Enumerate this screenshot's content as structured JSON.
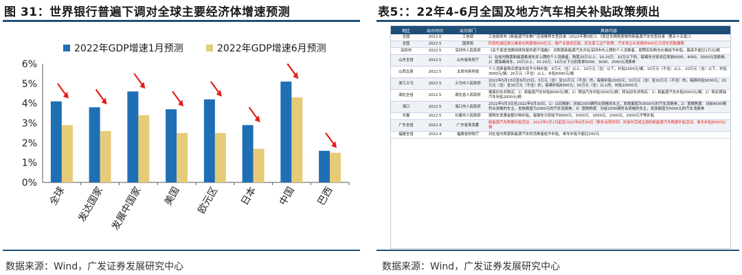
{
  "left": {
    "title": "图 31：世界银行普遍下调对全球主要经济体增速预测",
    "source": "数据来源：Wind，广发证券发展研究中心"
  },
  "chart_data": {
    "type": "bar",
    "categories": [
      "全球",
      "发达国家",
      "发展中国家",
      "美国",
      "欧元区",
      "日本",
      "中国",
      "巴西"
    ],
    "series": [
      {
        "name": "2022年GDP增速1月预测",
        "color": "#1f6fb5",
        "values": [
          4.1,
          3.8,
          4.6,
          3.7,
          4.2,
          2.9,
          5.1,
          1.6
        ]
      },
      {
        "name": "2022年GDP增速6月预测",
        "color": "#e6cc78",
        "values": [
          2.9,
          2.6,
          3.4,
          2.5,
          2.5,
          1.7,
          4.3,
          1.5
        ]
      }
    ],
    "ylim": [
      0,
      6
    ],
    "yticks": [
      "0%",
      "1%",
      "2%",
      "3%",
      "4%",
      "5%",
      "6%"
    ],
    "annotation_color": "#e0201b",
    "grid": false,
    "legend": "top"
  },
  "right": {
    "title": "表5：：22年4-6月全国及地方汽车相关补贴政策频出",
    "source": "数据来源：Wind，广发证券发展研究中心",
    "headers": [
      "地区",
      "出台时间",
      "出台部门",
      "具体内容"
    ],
    "rows": [
      {
        "region": "全国",
        "date": "2022.6",
        "dept": "工信部",
        "content": "工信部发布《新能源汽车推广应用推荐车型目录（2022年第5批）》、《免征车辆购置税的新能源汽车车型目录（第五十五批）》"
      },
      {
        "region": "全国",
        "date": "2022.5",
        "dept": "国务院",
        "content": "阶段性减征部分乘用车购置税600亿元，稳产业链供应链、优化复工达产政策、汽车类企业发放的900亿元货车贷款展期",
        "hl": true
      },
      {
        "region": "深圳市",
        "date": "2022.5",
        "dept": "深圳市人民政府",
        "content": "《关于促进消费持续恢复的若干措施》：对购置新能源汽车并在深圳市内上牌的个人消费者，按照实际购车价格给予补贴，最高不超过1万元/辆"
      },
      {
        "region": "山东全省",
        "date": "2022.5",
        "dept": "山东省商务厅",
        "content": "1）在省内购置新能源乘用车并上牌的个人消费者，购置20万以上、10-20万、10万以下的，每辆车分别对应发放6000、4000、3000元消费券。2）燃油乘用车，20万以上、10-20万、10万以下分别发放5000、3000、2000元消费券"
      },
      {
        "region": "山西太原",
        "date": "2022.5",
        "dept": "太原市商务局",
        "content": "个人消费者购买燃油车给予分档补贴：6万元（含）以上、10万元（含）以下，补贴2000元/辆；10万元（不含）以上、20万元（含）以下，补贴3000元/辆；20万元（不含）以上，补贴5000元/辆"
      },
      {
        "region": "浙江义乌",
        "date": "2022.5",
        "dept": "义乌市人民政府",
        "content": "2022年5月15日至6月15日，3万元（含）至10万元（不含）的，每辆补贴2000元；10万元（含）至20万元（不含）的，每辆补贴5000元；20万元（含）至30万元（不含）的，每辆补贴8000元；30万元（含）以上的，补贴10000元"
      },
      {
        "region": "湖北全省",
        "date": "2022.5",
        "dept": "湖北省人民政府",
        "content": "报废旧车并购买：1）新能源汽车补贴8000元/辆；2）燃油汽车补贴3000元/辆；转出旧车并购买：1）新能源汽车补贴5000元/辆；2）购买燃油汽车补贴2000元/辆"
      },
      {
        "region": "海口",
        "date": "2022.5",
        "dept": "海口市人民政府",
        "content": "2022年5月3日至2022年6月30日，1）以旧换新：对前2000辆符合资格的车主，发放面值为3000元的汽车消费券；2）置换购置：对前4500辆符合资格的车主，发放面值为2000元的汽车消费券；3）团购购置：对前1000辆符合资格的车主，发放面值为5000元的汽车消费券"
      },
      {
        "region": "长春",
        "date": "2022.5",
        "dept": "长春市人民政府",
        "content": "按购车发票金额分档补贴，每辆车分别给予8000元、5000元、3000元、2000元、1000元不等补贴"
      },
      {
        "region": "广东全省",
        "date": "2022.4",
        "dept": "广东省发改委",
        "content": "新能源汽车购置补贴活动，2022年5月1日起至2022年6月30日（购车合同时间）对省内完成注册的新能源汽车购置补贴活动，单车补贴8000元/辆",
        "hl": true
      },
      {
        "region": "福建全省",
        "date": "2022.4",
        "dept": "福建省财政厅",
        "content": "对在省内购置新能源汽车的消费者给予补贴，单车补贴不超过200元"
      }
    ]
  }
}
